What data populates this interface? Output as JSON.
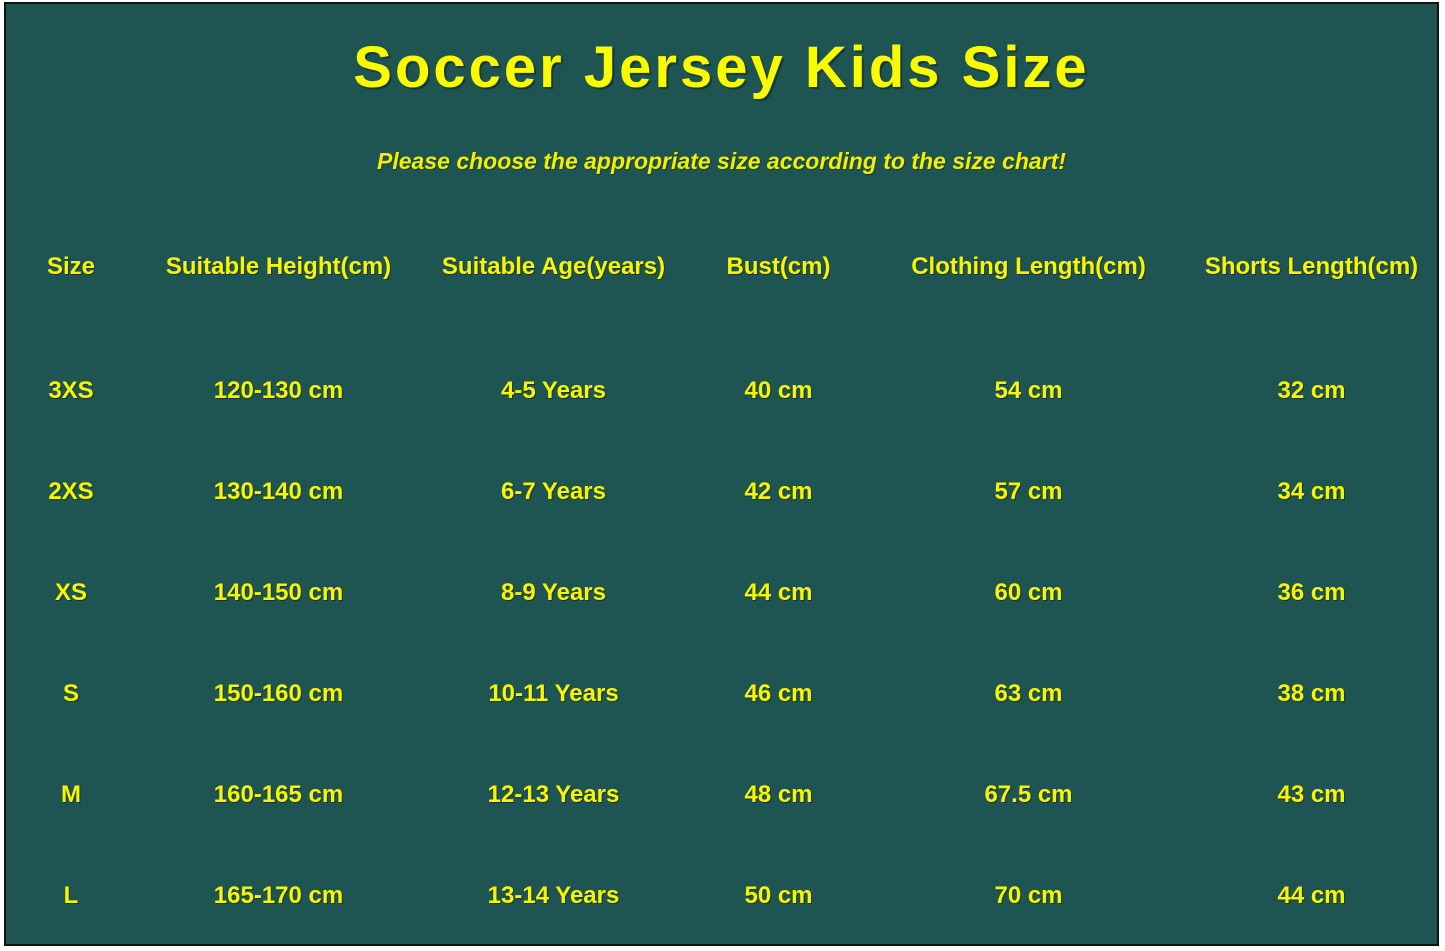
{
  "page": {
    "title": "Soccer Jersey Kids Size",
    "subtitle": "Please choose the appropriate size according to the size chart!"
  },
  "colors": {
    "background": "#1E5552",
    "text_yellow": "#F8F500",
    "border": "#121212",
    "page_edge": "#FFFFFF"
  },
  "chart_data": {
    "type": "table",
    "title": "Soccer Jersey Kids Size",
    "columns": [
      "Size",
      "Suitable Height(cm)",
      "Suitable Age(years)",
      "Bust(cm)",
      "Clothing Length(cm)",
      "Shorts Length(cm)"
    ],
    "rows": [
      [
        "3XS",
        "120-130 cm",
        "4-5 Years",
        "40 cm",
        "54 cm",
        "32 cm"
      ],
      [
        "2XS",
        "130-140 cm",
        "6-7 Years",
        "42 cm",
        "57 cm",
        "34 cm"
      ],
      [
        "XS",
        "140-150 cm",
        "8-9 Years",
        "44 cm",
        "60 cm",
        "36 cm"
      ],
      [
        "S",
        "150-160 cm",
        "10-11 Years",
        "46 cm",
        "63 cm",
        "38 cm"
      ],
      [
        "M",
        "160-165 cm",
        "12-13 Years",
        "48 cm",
        "67.5 cm",
        "43 cm"
      ],
      [
        "L",
        "165-170 cm",
        "13-14 Years",
        "50 cm",
        "70 cm",
        "44 cm"
      ]
    ]
  }
}
